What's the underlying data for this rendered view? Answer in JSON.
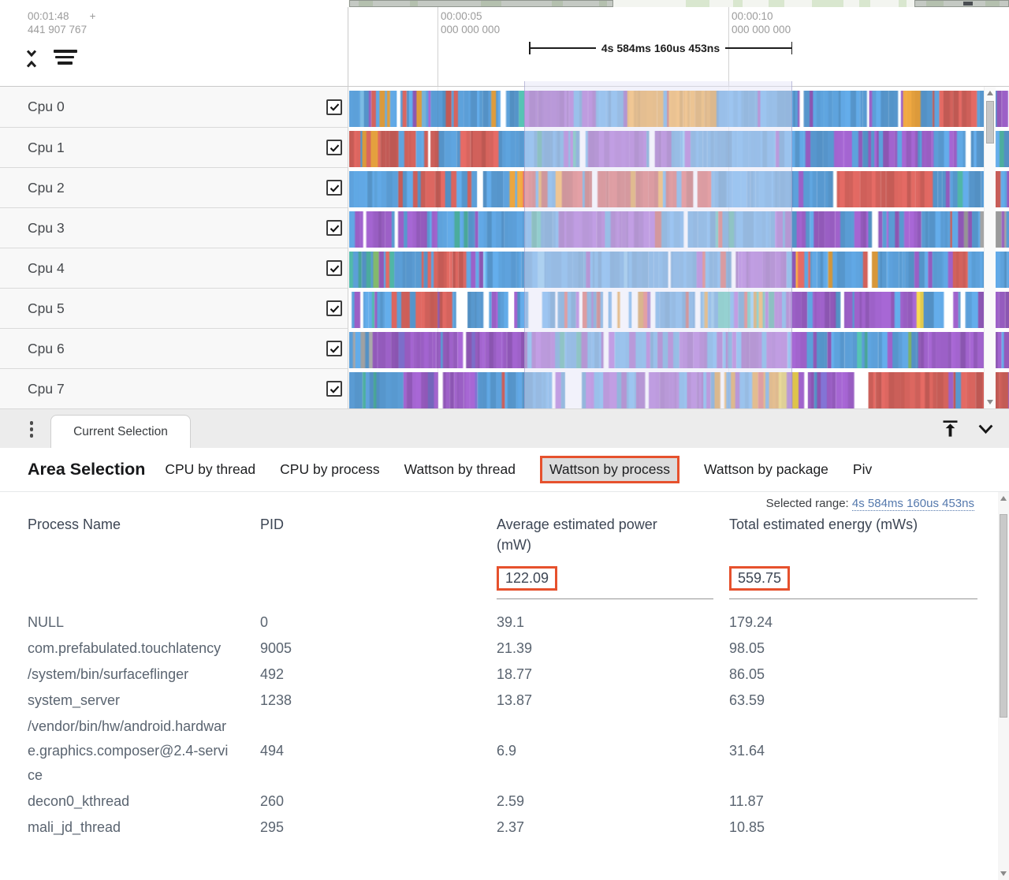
{
  "timeline": {
    "clock_time": "00:01:48",
    "clock_plus": "+",
    "clock_offset": "441 907 767",
    "ticks": [
      {
        "time": "00:00:05",
        "sub": "000 000 000"
      },
      {
        "time": "00:00:10",
        "sub": "000 000 000"
      }
    ],
    "span_label": "4s 584ms 160us 453ns"
  },
  "tracks": {
    "palette": {
      "blue": "#5C9FD8",
      "lightblue": "#7FC0E8",
      "purple": "#9A5FC4",
      "violet": "#7D6FCB",
      "red": "#D2625C",
      "orange": "#E8A33F",
      "yellow": "#E2C84C",
      "teal": "#4FB3A4",
      "green": "#86BD6E",
      "gray": "#9C9C9C",
      "white": "#FFFFFF"
    },
    "rows": [
      {
        "label": "Cpu 0",
        "checked": true,
        "seed": 11,
        "segments": [
          [
            "mx",
            0.25
          ],
          [
            "pu",
            0.1
          ],
          [
            "bl",
            0.04
          ],
          [
            "or",
            0.12
          ],
          [
            "bl",
            0.1
          ],
          [
            "bs",
            0.16
          ],
          [
            "or",
            0.02
          ],
          [
            "bs",
            0.02
          ],
          [
            "re",
            0.05
          ],
          [
            "bs",
            0.04
          ],
          [
            "pu",
            0.1
          ]
        ]
      },
      {
        "label": "Cpu 1",
        "checked": true,
        "seed": 22,
        "segments": [
          [
            "rm",
            0.13
          ],
          [
            "bl",
            0.02
          ],
          [
            "re",
            0.05
          ],
          [
            "bm",
            0.13
          ],
          [
            "pu",
            0.11
          ],
          [
            "bl",
            0.19
          ],
          [
            "pm",
            0.22
          ],
          [
            "bm",
            0.15
          ]
        ]
      },
      {
        "label": "Cpu 2",
        "checked": true,
        "seed": 33,
        "segments": [
          [
            "bm",
            0.09
          ],
          [
            "re",
            0.06
          ],
          [
            "bm",
            0.07
          ],
          [
            "ro",
            0.29
          ],
          [
            "bl",
            0.18
          ],
          [
            "re",
            0.13
          ],
          [
            "bm",
            0.18
          ]
        ]
      },
      {
        "label": "Cpu 3",
        "checked": true,
        "seed": 44,
        "segments": [
          [
            "pm",
            0.15
          ],
          [
            "bm",
            0.15
          ],
          [
            "pu",
            0.12
          ],
          [
            "bm",
            0.18
          ],
          [
            "pm",
            0.21
          ],
          [
            "bs",
            0.05
          ],
          [
            "gm",
            0.12
          ],
          [
            "bl",
            0.02
          ]
        ]
      },
      {
        "label": "Cpu 4",
        "checked": true,
        "seed": 55,
        "segments": [
          [
            "tm",
            0.04
          ],
          [
            "bm",
            0.08
          ],
          [
            "re",
            0.04
          ],
          [
            "bl",
            0.26
          ],
          [
            "bs",
            0.12
          ],
          [
            "pu",
            0.07
          ],
          [
            "bs",
            0.18
          ],
          [
            "pm",
            0.05
          ],
          [
            "re",
            0.02
          ],
          [
            "bl",
            0.12
          ],
          [
            "pu",
            0.02
          ]
        ]
      },
      {
        "label": "Cpu 5",
        "checked": true,
        "seed": 66,
        "segments": [
          [
            "bm",
            0.07
          ],
          [
            "re",
            0.07
          ],
          [
            "bw",
            0.16
          ],
          [
            "mw",
            0.15
          ],
          [
            "mx",
            0.15
          ],
          [
            "pu",
            0.2
          ],
          [
            "ye",
            0.01
          ],
          [
            "bw",
            0.07
          ],
          [
            "pu",
            0.12
          ]
        ]
      },
      {
        "label": "Cpu 6",
        "checked": true,
        "seed": 77,
        "segments": [
          [
            "gy",
            0.03
          ],
          [
            "pu",
            0.26
          ],
          [
            "bm",
            0.13
          ],
          [
            "pm",
            0.27
          ],
          [
            "bt",
            0.12
          ],
          [
            "pu",
            0.19
          ]
        ]
      },
      {
        "label": "Cpu 7",
        "checked": true,
        "seed": 88,
        "segments": [
          [
            "bm",
            0.08
          ],
          [
            "pu",
            0.1
          ],
          [
            "bm",
            0.12
          ],
          [
            "wh",
            0.02
          ],
          [
            "pm",
            0.18
          ],
          [
            "mw",
            0.08
          ],
          [
            "ym",
            0.04
          ],
          [
            "pu",
            0.08
          ],
          [
            "wh",
            0.02
          ],
          [
            "re",
            0.2
          ],
          [
            "pm",
            0.08
          ]
        ]
      }
    ]
  },
  "bottom_panel": {
    "tab_label": "Current Selection",
    "heading": "Area Selection",
    "tabs": [
      {
        "label": "CPU by thread",
        "selected": false
      },
      {
        "label": "CPU by process",
        "selected": false
      },
      {
        "label": "Wattson by thread",
        "selected": false
      },
      {
        "label": "Wattson by process",
        "selected": true
      },
      {
        "label": "Wattson by package",
        "selected": false
      },
      {
        "label": "Piv",
        "selected": false
      }
    ],
    "selected_range_label": "Selected range:",
    "selected_range_value": "4s 584ms 160us 453ns",
    "table": {
      "columns": [
        "Process Name",
        "PID",
        "Average estimated power (mW)",
        "Total estimated energy (mWs)"
      ],
      "summary": {
        "avg_power": "122.09",
        "total_energy": "559.75"
      },
      "rows": [
        {
          "name": "NULL",
          "pid": "0",
          "avg": "39.1",
          "total": "179.24"
        },
        {
          "name": "com.prefabulated.touchlatency",
          "pid": "9005",
          "avg": "21.39",
          "total": "98.05"
        },
        {
          "name": "/system/bin/surfaceflinger",
          "pid": "492",
          "avg": "18.77",
          "total": "86.05"
        },
        {
          "name": "system_server",
          "pid": "1238",
          "avg": "13.87",
          "total": "63.59"
        },
        {
          "name": "/vendor/bin/hw/android.hardware.graphics.composer@2.4-service",
          "pid": "494",
          "avg": "6.9",
          "total": "31.64"
        },
        {
          "name": "decon0_kthread",
          "pid": "260",
          "avg": "2.59",
          "total": "11.87"
        },
        {
          "name": "mali_jd_thread",
          "pid": "295",
          "avg": "2.37",
          "total": "10.85"
        }
      ]
    }
  },
  "colors": {
    "annotation_highlight": "#E6512D",
    "range_link": "#5579AD",
    "selection_overlay": "rgba(226,227,246,0.45)"
  },
  "icons": {
    "header": [
      "unfold-less-icon",
      "sort-tracks-icon"
    ],
    "tabstrip_left": "kebab-menu-icon",
    "tabstrip_right": [
      "dock-to-top-icon",
      "chevron-down-icon"
    ]
  }
}
